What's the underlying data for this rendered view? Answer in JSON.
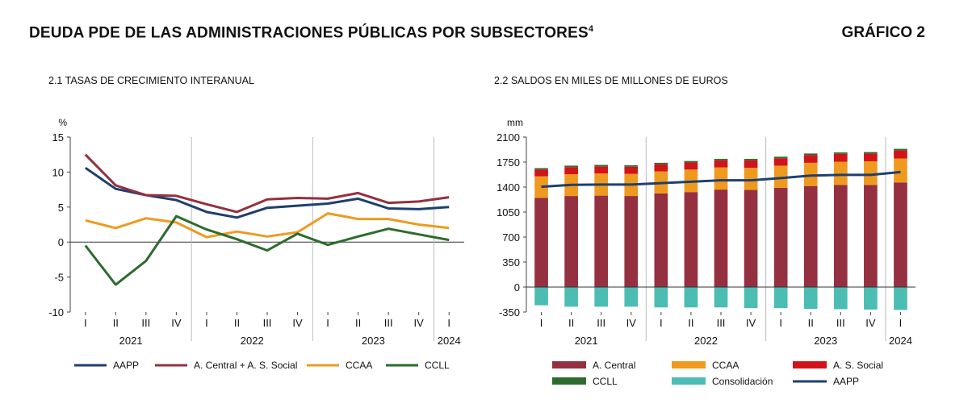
{
  "header": {
    "title": "DEUDA PDE DE LAS ADMINISTRACIONES PÚBLICAS POR SUBSECTORES",
    "footnote": "4",
    "code": "GRÁFICO 2"
  },
  "chart_data": [
    {
      "type": "line",
      "title": "2.1 TASAS DE CRECIMIENTO INTERANUAL",
      "ylabel": "%",
      "ylim": [
        -10,
        15
      ],
      "yticks": [
        15,
        10,
        5,
        0,
        -5,
        -10
      ],
      "categories": [
        "I",
        "II",
        "III",
        "IV",
        "I",
        "II",
        "III",
        "IV",
        "I",
        "II",
        "III",
        "IV",
        "I"
      ],
      "years": [
        {
          "label": "2021",
          "from": 0,
          "to": 3
        },
        {
          "label": "2022",
          "from": 4,
          "to": 7
        },
        {
          "label": "2023",
          "from": 8,
          "to": 11
        },
        {
          "label": "2024",
          "from": 12,
          "to": 12
        }
      ],
      "grid": false,
      "legend_position": "bottom",
      "series": [
        {
          "name": "AAPP",
          "color": "#1f3f6e",
          "values": [
            10.6,
            7.6,
            6.7,
            6.0,
            4.3,
            3.5,
            4.9,
            5.2,
            5.5,
            6.2,
            4.8,
            4.7,
            5.0
          ]
        },
        {
          "name": "A. Central + A. S. Social",
          "color": "#953040",
          "values": [
            12.5,
            8.1,
            6.7,
            6.6,
            5.4,
            4.3,
            6.1,
            6.3,
            6.2,
            7.0,
            5.6,
            5.8,
            6.4
          ]
        },
        {
          "name": "CCAA",
          "color": "#ef9a1f",
          "values": [
            3.1,
            2.0,
            3.4,
            2.8,
            0.7,
            1.5,
            0.8,
            1.4,
            4.1,
            3.3,
            3.3,
            2.5,
            2.0
          ]
        },
        {
          "name": "CCLL",
          "color": "#2e6b2e",
          "values": [
            -0.5,
            -6.1,
            -2.7,
            3.7,
            1.8,
            0.4,
            -1.2,
            1.2,
            -0.4,
            0.8,
            1.9,
            1.1,
            0.3
          ]
        }
      ]
    },
    {
      "type": "bar",
      "stacked": true,
      "title": "2.2 SALDOS EN MILES DE MILLONES DE EUROS",
      "ylabel": "mm",
      "ylim": [
        -350,
        2100
      ],
      "yticks": [
        2100,
        1750,
        1400,
        1050,
        700,
        350,
        0,
        -350
      ],
      "categories": [
        "I",
        "II",
        "III",
        "IV",
        "I",
        "II",
        "III",
        "IV",
        "I",
        "II",
        "III",
        "IV",
        "I"
      ],
      "years": [
        {
          "label": "2021",
          "from": 0,
          "to": 3
        },
        {
          "label": "2022",
          "from": 4,
          "to": 7
        },
        {
          "label": "2023",
          "from": 8,
          "to": 11
        },
        {
          "label": "2024",
          "from": 12,
          "to": 12
        }
      ],
      "grid": false,
      "legend_position": "bottom",
      "series": [
        {
          "name": "A. Central",
          "color": "#953040",
          "kind": "bar",
          "values": [
            1250,
            1275,
            1280,
            1275,
            1310,
            1330,
            1365,
            1360,
            1390,
            1415,
            1430,
            1430,
            1465
          ]
        },
        {
          "name": "CCAA",
          "color": "#ef9a1f",
          "kind": "bar",
          "values": [
            300,
            305,
            310,
            310,
            310,
            315,
            310,
            310,
            310,
            325,
            325,
            330,
            335
          ]
        },
        {
          "name": "A. S. Social",
          "color": "#d01419",
          "kind": "bar",
          "values": [
            95,
            100,
            100,
            100,
            100,
            100,
            100,
            105,
            105,
            110,
            110,
            110,
            115
          ]
        },
        {
          "name": "CCLL",
          "color": "#2e6b2e",
          "kind": "bar",
          "values": [
            20,
            20,
            20,
            20,
            20,
            20,
            20,
            20,
            20,
            20,
            20,
            20,
            20
          ]
        },
        {
          "name": "Consolidación",
          "color": "#4bbdb3",
          "kind": "bar",
          "values": [
            -255,
            -275,
            -275,
            -275,
            -285,
            -285,
            -285,
            -295,
            -295,
            -305,
            -310,
            -315,
            -320
          ]
        },
        {
          "name": "AAPP",
          "color": "#1f3f6e",
          "kind": "line",
          "values": [
            1405,
            1430,
            1435,
            1435,
            1455,
            1475,
            1495,
            1495,
            1525,
            1560,
            1570,
            1570,
            1610
          ]
        }
      ]
    }
  ]
}
